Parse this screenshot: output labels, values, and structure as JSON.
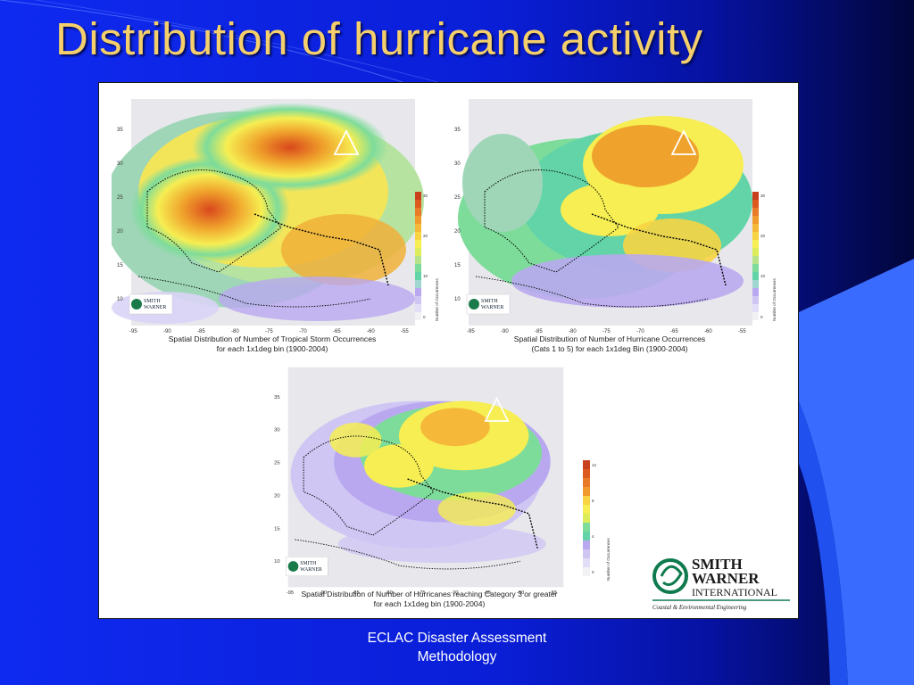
{
  "slide": {
    "title": "Distribution of hurricane activity",
    "footer": "ECLAC Disaster Assessment\nMethodology"
  },
  "figure": {
    "maps": [
      {
        "caption": "Spatial Distribution of Number of Tropical Storm Occurrences\nfor each 1x1deg bin (1900-2004)",
        "legend_values": [
          "30",
          "28",
          "26",
          "24",
          "22",
          "20",
          "18",
          "16",
          "14",
          "12",
          "10",
          "8",
          "6",
          "4",
          "2",
          "0"
        ],
        "legend_title": "Number of Occurrences"
      },
      {
        "caption": "Spatial Distribution of Number of Hurricane Occurrences\n(Cats 1 to 5) for each 1x1deg Bin (1900-2004)",
        "legend_values": [
          "30",
          "28",
          "26",
          "24",
          "22",
          "20",
          "18",
          "16",
          "14",
          "12",
          "10",
          "8",
          "6",
          "4",
          "2",
          "0"
        ],
        "legend_title": "Number of Occurrences"
      },
      {
        "caption": "Spatial Distribution of Number of Hurricanes reaching Category 3 or greater\nfor each 1x1deg bin (1900-2004)",
        "legend_values": [
          "12",
          "11",
          "10",
          "9",
          "8",
          "7",
          "6",
          "5",
          "4",
          "3",
          "2",
          "1",
          "0"
        ],
        "legend_title": "Number of Occurrences"
      }
    ],
    "x_ticks": [
      "-95",
      "-90",
      "-85",
      "-80",
      "-75",
      "-70",
      "-65",
      "-60",
      "-55"
    ],
    "y_ticks": [
      "35",
      "30",
      "25",
      "20",
      "15",
      "10"
    ],
    "small_logo_text": [
      "SMITH",
      "WARNER"
    ],
    "logo": {
      "line1": "SMITH",
      "line2": "WARNER",
      "line3": "INTERNATIONAL",
      "tagline": "Coastal & Environmental Engineering"
    }
  },
  "colors": {
    "title": "#f4cf6b",
    "background": "#0a1acc",
    "footer_text": "#ffffff"
  }
}
